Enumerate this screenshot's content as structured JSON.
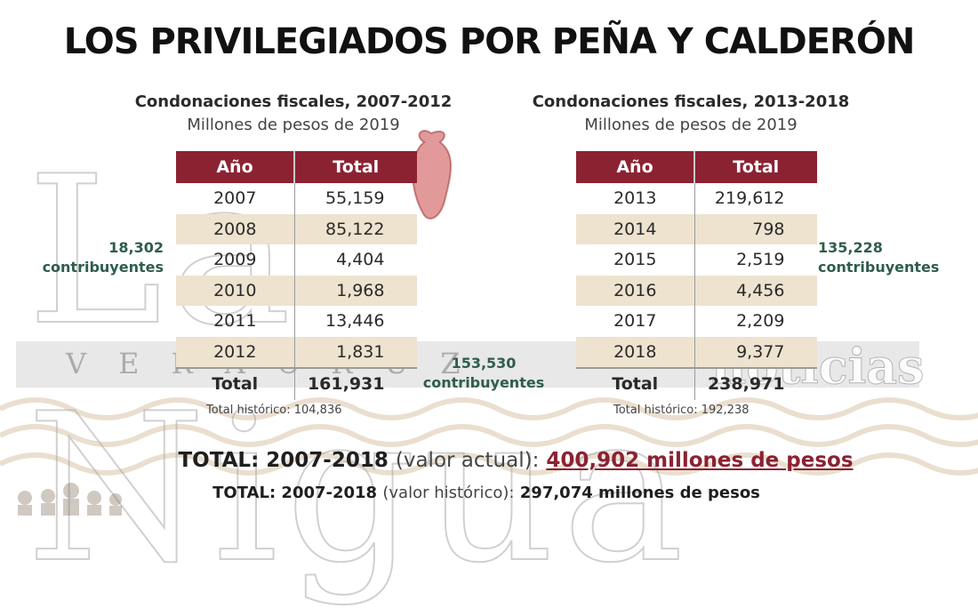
{
  "headline": "LOS PRIVILEGIADOS POR PEÑA Y CALDERÓN",
  "watermark": {
    "main": "La Nigua",
    "band_left": "VERACRUZ",
    "band_right": "noticias"
  },
  "left": {
    "title": "Condonaciones fiscales, 2007-2012",
    "units": "Millones de pesos de 2019",
    "col_year": "Año",
    "col_total": "Total",
    "rows": [
      {
        "year": "2007",
        "total": "55,159"
      },
      {
        "year": "2008",
        "total": "85,122"
      },
      {
        "year": "2009",
        "total": "4,404"
      },
      {
        "year": "2010",
        "total": "1,968"
      },
      {
        "year": "2011",
        "total": "13,446"
      },
      {
        "year": "2012",
        "total": "1,831"
      }
    ],
    "total_label": "Total",
    "total_value": "161,931",
    "historic": "Total histórico: 104,836",
    "contrib_number": "18,302",
    "contrib_label": "contribuyentes"
  },
  "right": {
    "title": "Condonaciones fiscales, 2013-2018",
    "units": "Millones de pesos de 2019",
    "col_year": "Año",
    "col_total": "Total",
    "rows": [
      {
        "year": "2013",
        "total": "219,612"
      },
      {
        "year": "2014",
        "total": "798"
      },
      {
        "year": "2015",
        "total": "2,519"
      },
      {
        "year": "2016",
        "total": "4,456"
      },
      {
        "year": "2017",
        "total": "2,209"
      },
      {
        "year": "2018",
        "total": "9,377"
      }
    ],
    "total_label": "Total",
    "total_value": "238,971",
    "historic": "Total histórico: 192,238",
    "contrib_number": "135,228",
    "contrib_label": "contribuyentes"
  },
  "middle_contrib": {
    "number": "153,530",
    "label": "contribuyentes"
  },
  "totals": {
    "line1_prefix": "TOTAL: 2007-2018",
    "line1_mid": "(valor actual):",
    "line1_value": "400,902 millones de pesos",
    "line2_prefix": "TOTAL: 2007-2018",
    "line2_mid": "(valor histórico):",
    "line2_value": "297,074 millones de pesos"
  },
  "colors": {
    "header_bg": "#8b2232",
    "stripe": "#ede3cf",
    "contrib_text": "#2f5d4c",
    "highlight": "#8b2232"
  }
}
